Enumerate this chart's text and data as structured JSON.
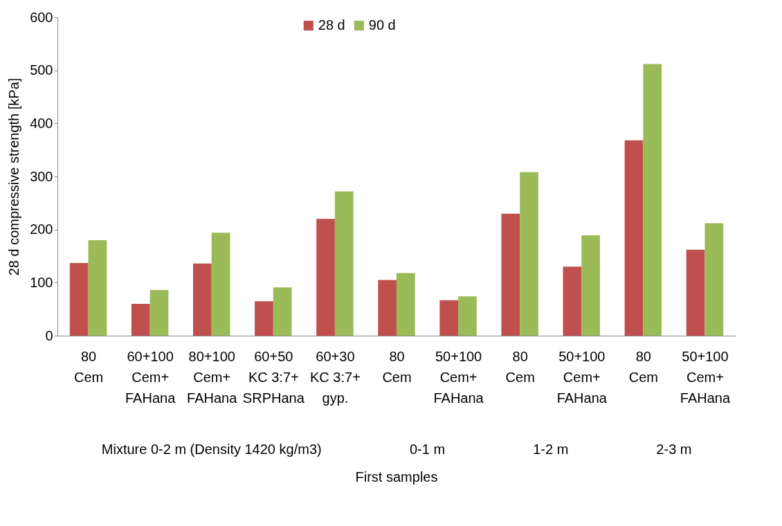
{
  "chart_data": {
    "type": "bar",
    "ylabel": "28 d compressive strength [kPa]",
    "xlabel": "First samples",
    "categories": [
      "80\nCem",
      "60+100\nCem+\nFAHana",
      "80+100\nCem+\nFAHana",
      "60+50\nKC 3:7+\nSRPHana",
      "60+30\nKC 3:7+\ngyp.",
      "80\nCem",
      "50+100\nCem+\nFAHana",
      "80\nCem",
      "50+100\nCem+\nFAHana",
      "80\nCem",
      "50+100\nCem+\nFAHana"
    ],
    "series": [
      {
        "name": "28 d",
        "color": "#c0504d",
        "values": [
          137,
          60,
          136,
          65,
          220,
          105,
          67,
          230,
          130,
          368,
          162
        ]
      },
      {
        "name": "90 d",
        "color": "#9bbb59",
        "values": [
          180,
          86,
          194,
          91,
          272,
          118,
          74,
          308,
          189,
          512,
          212
        ]
      }
    ],
    "annotations": [
      "Mixture 0-2 m (Density 1420 kg/m3)",
      "0-1 m",
      "1-2 m",
      "2-3 m"
    ],
    "ylim": [
      0,
      600
    ],
    "yticks": [
      0,
      100,
      200,
      300,
      400,
      500,
      600
    ],
    "grid": false,
    "legend": "top"
  }
}
